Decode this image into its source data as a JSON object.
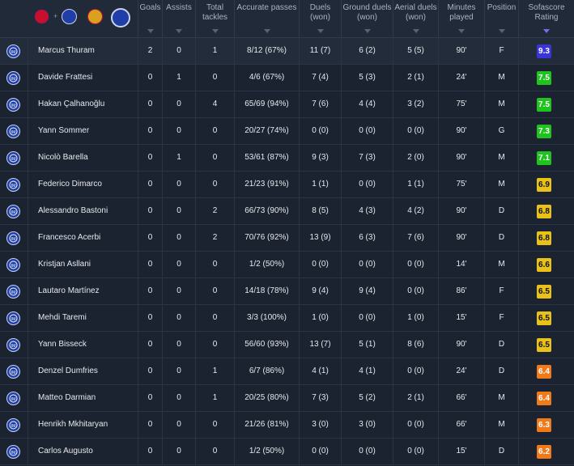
{
  "columns": {
    "goals": "Goals",
    "assists": "Assists",
    "tackles": "Total tackles",
    "passes": "Accurate passes",
    "duels": "Duels (won)",
    "ground": "Ground duels (won)",
    "aerial": "Aerial duels (won)",
    "minutes": "Minutes played",
    "position": "Position",
    "rating": "Sofascore Rating"
  },
  "colors": {
    "rating_purple": "#3b35d9",
    "rating_green": "#1ec31e",
    "rating_yellow": "#e8c21a",
    "rating_orange": "#f07a1a"
  },
  "players": [
    {
      "name": "Marcus Thuram",
      "goals": "2",
      "assists": "0",
      "tackles": "1",
      "passes": "8/12 (67%)",
      "duels": "11 (7)",
      "ground": "6 (2)",
      "aerial": "5 (5)",
      "minutes": "90'",
      "position": "F",
      "rating": "9.3",
      "color": "#3b35d9",
      "text": "#ffffff"
    },
    {
      "name": "Davide Frattesi",
      "goals": "0",
      "assists": "1",
      "tackles": "0",
      "passes": "4/6 (67%)",
      "duels": "7 (4)",
      "ground": "5 (3)",
      "aerial": "2 (1)",
      "minutes": "24'",
      "position": "M",
      "rating": "7.5",
      "color": "#1ec31e",
      "text": "#ffffff"
    },
    {
      "name": "Hakan Çalhanoğlu",
      "goals": "0",
      "assists": "0",
      "tackles": "4",
      "passes": "65/69 (94%)",
      "duels": "7 (6)",
      "ground": "4 (4)",
      "aerial": "3 (2)",
      "minutes": "75'",
      "position": "M",
      "rating": "7.5",
      "color": "#1ec31e",
      "text": "#ffffff"
    },
    {
      "name": "Yann Sommer",
      "goals": "0",
      "assists": "0",
      "tackles": "0",
      "passes": "20/27 (74%)",
      "duels": "0 (0)",
      "ground": "0 (0)",
      "aerial": "0 (0)",
      "minutes": "90'",
      "position": "G",
      "rating": "7.3",
      "color": "#1ec31e",
      "text": "#ffffff"
    },
    {
      "name": "Nicolò Barella",
      "goals": "0",
      "assists": "1",
      "tackles": "0",
      "passes": "53/61 (87%)",
      "duels": "9 (3)",
      "ground": "7 (3)",
      "aerial": "2 (0)",
      "minutes": "90'",
      "position": "M",
      "rating": "7.1",
      "color": "#1ec31e",
      "text": "#ffffff"
    },
    {
      "name": "Federico Dimarco",
      "goals": "0",
      "assists": "0",
      "tackles": "0",
      "passes": "21/23 (91%)",
      "duels": "1 (1)",
      "ground": "0 (0)",
      "aerial": "1 (1)",
      "minutes": "75'",
      "position": "M",
      "rating": "6.9",
      "color": "#e8c21a",
      "text": "#111111"
    },
    {
      "name": "Alessandro Bastoni",
      "goals": "0",
      "assists": "0",
      "tackles": "2",
      "passes": "66/73 (90%)",
      "duels": "8 (5)",
      "ground": "4 (3)",
      "aerial": "4 (2)",
      "minutes": "90'",
      "position": "D",
      "rating": "6.8",
      "color": "#e8c21a",
      "text": "#111111"
    },
    {
      "name": "Francesco Acerbi",
      "goals": "0",
      "assists": "0",
      "tackles": "2",
      "passes": "70/76 (92%)",
      "duels": "13 (9)",
      "ground": "6 (3)",
      "aerial": "7 (6)",
      "minutes": "90'",
      "position": "D",
      "rating": "6.8",
      "color": "#e8c21a",
      "text": "#111111"
    },
    {
      "name": "Kristjan Asllani",
      "goals": "0",
      "assists": "0",
      "tackles": "0",
      "passes": "1/2 (50%)",
      "duels": "0 (0)",
      "ground": "0 (0)",
      "aerial": "0 (0)",
      "minutes": "14'",
      "position": "M",
      "rating": "6.6",
      "color": "#e8c21a",
      "text": "#111111"
    },
    {
      "name": "Lautaro Martínez",
      "goals": "0",
      "assists": "0",
      "tackles": "0",
      "passes": "14/18 (78%)",
      "duels": "9 (4)",
      "ground": "9 (4)",
      "aerial": "0 (0)",
      "minutes": "86'",
      "position": "F",
      "rating": "6.5",
      "color": "#e8c21a",
      "text": "#111111"
    },
    {
      "name": "Mehdi Taremi",
      "goals": "0",
      "assists": "0",
      "tackles": "0",
      "passes": "3/3 (100%)",
      "duels": "1 (0)",
      "ground": "0 (0)",
      "aerial": "1 (0)",
      "minutes": "15'",
      "position": "F",
      "rating": "6.5",
      "color": "#e8c21a",
      "text": "#111111"
    },
    {
      "name": "Yann Bisseck",
      "goals": "0",
      "assists": "0",
      "tackles": "0",
      "passes": "56/60 (93%)",
      "duels": "13 (7)",
      "ground": "5 (1)",
      "aerial": "8 (6)",
      "minutes": "90'",
      "position": "D",
      "rating": "6.5",
      "color": "#e8c21a",
      "text": "#111111"
    },
    {
      "name": "Denzel Dumfries",
      "goals": "0",
      "assists": "0",
      "tackles": "1",
      "passes": "6/7 (86%)",
      "duels": "4 (1)",
      "ground": "4 (1)",
      "aerial": "0 (0)",
      "minutes": "24'",
      "position": "D",
      "rating": "6.4",
      "color": "#f07a1a",
      "text": "#ffffff"
    },
    {
      "name": "Matteo Darmian",
      "goals": "0",
      "assists": "0",
      "tackles": "1",
      "passes": "20/25 (80%)",
      "duels": "7 (3)",
      "ground": "5 (2)",
      "aerial": "2 (1)",
      "minutes": "66'",
      "position": "M",
      "rating": "6.4",
      "color": "#f07a1a",
      "text": "#ffffff"
    },
    {
      "name": "Henrikh Mkhitaryan",
      "goals": "0",
      "assists": "0",
      "tackles": "0",
      "passes": "21/26 (81%)",
      "duels": "3 (0)",
      "ground": "3 (0)",
      "aerial": "0 (0)",
      "minutes": "66'",
      "position": "M",
      "rating": "6.3",
      "color": "#f07a1a",
      "text": "#ffffff"
    },
    {
      "name": "Carlos Augusto",
      "goals": "0",
      "assists": "0",
      "tackles": "0",
      "passes": "1/2 (50%)",
      "duels": "0 (0)",
      "ground": "0 (0)",
      "aerial": "0 (0)",
      "minutes": "15'",
      "position": "D",
      "rating": "6.2",
      "color": "#f07a1a",
      "text": "#ffffff"
    }
  ]
}
